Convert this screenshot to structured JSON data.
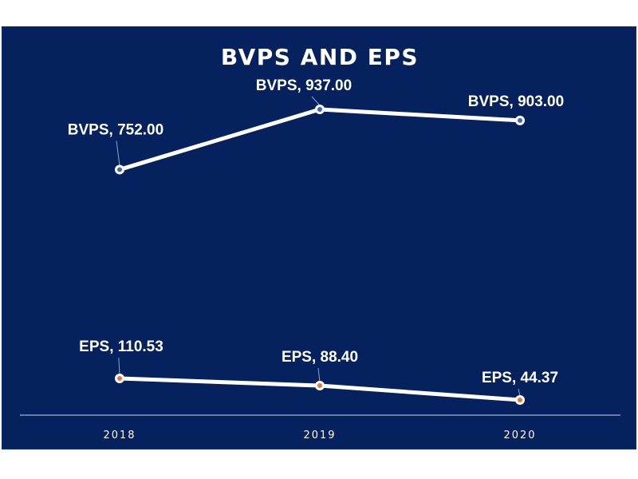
{
  "chart_data": {
    "type": "line",
    "title": "BVPS AND EPS",
    "categories": [
      "2018",
      "2019",
      "2020"
    ],
    "series": [
      {
        "name": "BVPS",
        "values": [
          752.0,
          937.0,
          903.0
        ],
        "labels": [
          "BVPS, 752.00",
          "BVPS, 937.00",
          "BVPS, 903.00"
        ],
        "marker_color": "#3f63c4"
      },
      {
        "name": "EPS",
        "values": [
          110.53,
          88.4,
          44.37
        ],
        "labels": [
          "EPS, 110.53",
          "EPS, 88.40",
          "EPS, 44.37"
        ],
        "marker_color": "#e07a3c"
      }
    ],
    "xlabel": "",
    "ylabel": "",
    "grid": false,
    "legend": "none",
    "colors": {
      "background": "#05215e",
      "line": "#ffffff",
      "text": "#ffffff",
      "axis": "#c9d3ea"
    }
  }
}
